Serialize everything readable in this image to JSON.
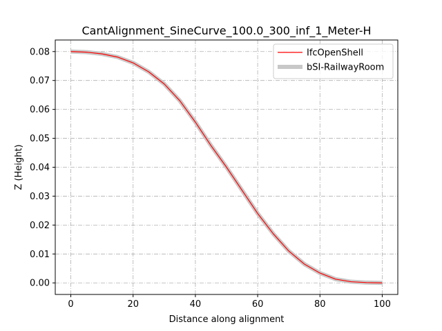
{
  "chart_data": {
    "type": "line",
    "title": "CantAlignment_SineCurve_100.0_300_inf_1_Meter-H",
    "xlabel": "Distance along alignment",
    "ylabel": "Z (Height)",
    "xlim": [
      -5,
      105
    ],
    "ylim": [
      -0.004,
      0.084
    ],
    "xticks": [
      0,
      20,
      40,
      60,
      80,
      100
    ],
    "yticks": [
      0.0,
      0.01,
      0.02,
      0.03,
      0.04,
      0.05,
      0.06,
      0.07,
      0.08
    ],
    "xtick_labels": [
      "0",
      "20",
      "40",
      "60",
      "80",
      "100"
    ],
    "ytick_labels": [
      "0.00",
      "0.01",
      "0.02",
      "0.03",
      "0.04",
      "0.05",
      "0.06",
      "0.07",
      "0.08"
    ],
    "grid": true,
    "legend_position": "top-right",
    "x": [
      0,
      5,
      10,
      15,
      20,
      25,
      30,
      35,
      40,
      45,
      50,
      55,
      60,
      65,
      70,
      75,
      80,
      85,
      90,
      95,
      100
    ],
    "series": [
      {
        "name": "IfcOpenShell",
        "color": "#ff0000",
        "values": [
          0.08,
          0.0798,
          0.0792,
          0.0781,
          0.0761,
          0.073,
          0.0688,
          0.063,
          0.0556,
          0.0475,
          0.04,
          0.032,
          0.024,
          0.017,
          0.011,
          0.0065,
          0.0034,
          0.0013,
          0.0004,
          0.0001,
          0.0
        ]
      },
      {
        "name": "bSI-RailwayRoom",
        "color": "#c8c8c8",
        "values": [
          0.08,
          0.0798,
          0.0792,
          0.0781,
          0.0761,
          0.073,
          0.0688,
          0.063,
          0.0556,
          0.0475,
          0.04,
          0.032,
          0.024,
          0.017,
          0.011,
          0.0065,
          0.0034,
          0.0013,
          0.0004,
          0.0001,
          0.0
        ]
      }
    ]
  }
}
